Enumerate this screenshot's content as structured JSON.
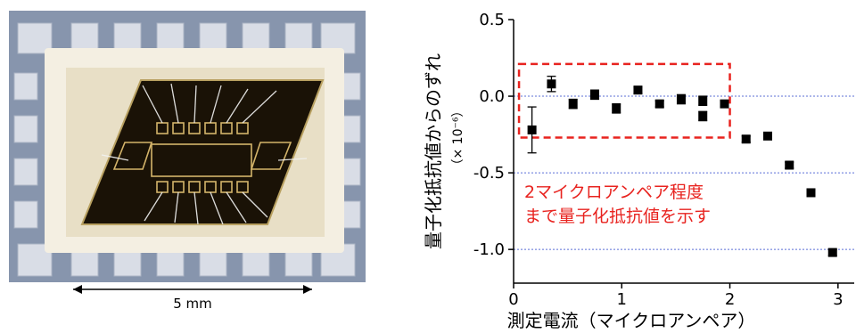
{
  "photo": {
    "scale_label": "5 mm"
  },
  "chart_data": {
    "type": "scatter",
    "xlabel": "測定電流（マイクロアンペア）",
    "ylabel": "量子化抵抗値からのずれ",
    "yunit": "（× 10⁻⁶）",
    "xlim": [
      0,
      3.15
    ],
    "ylim": [
      -1.22,
      0.5
    ],
    "xticks": [
      0,
      1,
      2,
      3
    ],
    "xtick_labels": [
      "0",
      "1",
      "2",
      "3"
    ],
    "yticks": [
      0.5,
      0.0,
      -0.5,
      -1.0
    ],
    "ytick_labels": [
      "0.5",
      "0.0",
      "-0.5",
      "-1.0"
    ],
    "gridlines_y": [
      0.0,
      -0.5,
      -1.0
    ],
    "points": [
      {
        "x": 0.17,
        "y": -0.22,
        "err": 0.15
      },
      {
        "x": 0.35,
        "y": 0.08,
        "err": 0.05
      },
      {
        "x": 0.55,
        "y": -0.05,
        "err": 0.03
      },
      {
        "x": 0.75,
        "y": 0.01,
        "err": 0.03
      },
      {
        "x": 0.95,
        "y": -0.08,
        "err": 0.03
      },
      {
        "x": 1.15,
        "y": 0.04,
        "err": 0.02
      },
      {
        "x": 1.35,
        "y": -0.05,
        "err": 0.02
      },
      {
        "x": 1.55,
        "y": -0.02,
        "err": 0.03
      },
      {
        "x": 1.75,
        "y": -0.13,
        "err": 0.03
      },
      {
        "x": 1.75,
        "y": -0.03,
        "err": 0.03
      },
      {
        "x": 1.95,
        "y": -0.05,
        "err": 0.02
      },
      {
        "x": 2.15,
        "y": -0.28,
        "err": 0.02
      },
      {
        "x": 2.35,
        "y": -0.26,
        "err": 0.02
      },
      {
        "x": 2.55,
        "y": -0.45,
        "err": 0.02
      },
      {
        "x": 2.75,
        "y": -0.63,
        "err": 0.02
      },
      {
        "x": 2.95,
        "y": -1.02,
        "err": 0.02
      }
    ],
    "highlight": {
      "x_range": [
        0.05,
        2.0
      ],
      "y_range": [
        -0.27,
        0.21
      ],
      "color": "#e8231f"
    },
    "annotation": [
      "2マイクロアンペア程度",
      "まで量子化抵抗値を示す"
    ],
    "grid_color": "#5b6fd6",
    "marker_color": "#000000"
  }
}
